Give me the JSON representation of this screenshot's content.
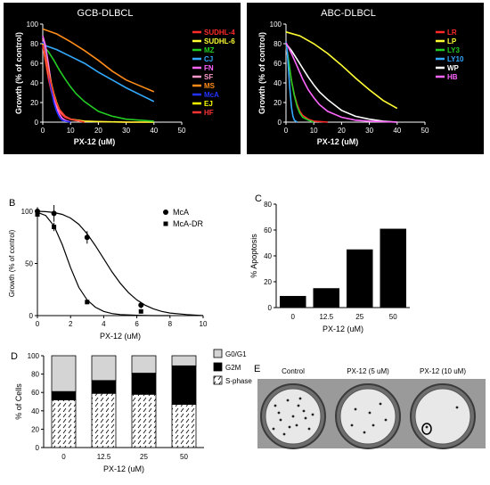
{
  "chart_data": [
    {
      "type": "line",
      "panel": "",
      "title": "GCB-DLBCL",
      "xlabel": "PX-12 (uM)",
      "ylabel": "Growth (% of control)",
      "xlim": [
        0,
        50
      ],
      "ylim": [
        0,
        100
      ],
      "xticks": [
        0,
        10,
        20,
        30,
        40,
        50
      ],
      "yticks": [
        0,
        20,
        40,
        60,
        80,
        100
      ],
      "background": "#000000",
      "legend_position": "right",
      "series": [
        {
          "name": "SUDHL-4",
          "color": "#ff2a2a",
          "x": [
            0,
            1,
            2,
            3,
            4,
            5,
            6,
            8,
            10,
            15,
            20,
            30,
            40
          ],
          "y": [
            78,
            62,
            45,
            32,
            22,
            15,
            10,
            5,
            3,
            1,
            0.5,
            0,
            0
          ]
        },
        {
          "name": "SUDHL-6",
          "color": "#ffff33",
          "x": [
            0,
            1,
            2,
            3,
            4,
            5,
            6,
            8,
            10,
            15,
            20,
            30,
            40
          ],
          "y": [
            80,
            66,
            50,
            37,
            26,
            18,
            12,
            6,
            3,
            1,
            0.5,
            0,
            0
          ]
        },
        {
          "name": "MZ",
          "color": "#22cc22",
          "x": [
            0,
            2,
            4,
            6,
            8,
            10,
            12,
            15,
            20,
            25,
            30,
            40
          ],
          "y": [
            78,
            72,
            63,
            53,
            44,
            36,
            29,
            21,
            11,
            6,
            3,
            1
          ]
        },
        {
          "name": "CJ",
          "color": "#33aaff",
          "x": [
            0,
            5,
            10,
            15,
            20,
            25,
            30,
            35,
            40
          ],
          "y": [
            79,
            74,
            67,
            60,
            51,
            43,
            35,
            28,
            21
          ]
        },
        {
          "name": "FN",
          "color": "#ff66ff",
          "x": [
            0,
            1,
            2,
            3,
            4,
            5,
            6,
            7,
            8,
            10
          ],
          "y": [
            88,
            78,
            60,
            40,
            25,
            14,
            8,
            4,
            2,
            0
          ]
        },
        {
          "name": "SF",
          "color": "#ff99cc",
          "x": [
            0,
            1,
            2,
            3,
            4,
            5,
            6,
            8,
            10,
            15
          ],
          "y": [
            85,
            72,
            56,
            40,
            28,
            19,
            12,
            6,
            3,
            0
          ]
        },
        {
          "name": "MS",
          "color": "#ff8c1a",
          "x": [
            0,
            5,
            10,
            15,
            20,
            25,
            30,
            35,
            40
          ],
          "y": [
            95,
            90,
            82,
            73,
            63,
            52,
            43,
            37,
            31
          ]
        },
        {
          "name": "McA",
          "color": "#2233ff",
          "x": [
            0,
            1,
            2,
            3,
            4,
            5,
            6,
            7,
            8,
            10
          ],
          "y": [
            82,
            70,
            52,
            34,
            20,
            11,
            5,
            2,
            1,
            0
          ]
        },
        {
          "name": "EJ",
          "color": "#ffff00",
          "x": [
            0,
            1,
            2,
            3,
            4,
            5,
            6,
            8,
            10,
            15
          ],
          "y": [
            80,
            68,
            53,
            40,
            29,
            20,
            13,
            6,
            3,
            0
          ]
        },
        {
          "name": "HF",
          "color": "#ff3333",
          "x": [
            0,
            1,
            2,
            3,
            4,
            5,
            6,
            8,
            10,
            15
          ],
          "y": [
            79,
            67,
            52,
            39,
            28,
            19,
            13,
            6,
            3,
            0
          ]
        }
      ]
    },
    {
      "type": "line",
      "panel": "",
      "title": "ABC-DLBCL",
      "xlabel": "PX-12 (uM)",
      "ylabel": "Growth (% of control)",
      "xlim": [
        0,
        50
      ],
      "ylim": [
        0,
        100
      ],
      "xticks": [
        0,
        10,
        20,
        30,
        40,
        50
      ],
      "yticks": [
        0,
        20,
        40,
        60,
        80,
        100
      ],
      "background": "#000000",
      "legend_position": "right",
      "series": [
        {
          "name": "LR",
          "color": "#ff2a2a",
          "x": [
            0,
            1,
            2,
            3,
            4,
            5,
            6,
            8,
            10,
            15
          ],
          "y": [
            78,
            60,
            42,
            28,
            18,
            11,
            7,
            3,
            1,
            0
          ]
        },
        {
          "name": "LP",
          "color": "#ffff33",
          "x": [
            0,
            5,
            10,
            15,
            20,
            25,
            30,
            35,
            40
          ],
          "y": [
            92,
            88,
            80,
            70,
            58,
            45,
            33,
            22,
            14
          ]
        },
        {
          "name": "LY3",
          "color": "#22cc22",
          "x": [
            0,
            1,
            2,
            3,
            4,
            5,
            6,
            8,
            10
          ],
          "y": [
            80,
            62,
            42,
            27,
            16,
            9,
            5,
            2,
            0
          ]
        },
        {
          "name": "LY10",
          "color": "#33aaff",
          "x": [
            0,
            0.5,
            1,
            1.5,
            2,
            2.5,
            3,
            4
          ],
          "y": [
            82,
            70,
            50,
            30,
            15,
            6,
            2,
            0
          ]
        },
        {
          "name": "WP",
          "color": "#ffffff",
          "x": [
            0,
            2,
            4,
            6,
            8,
            10,
            12,
            15,
            20,
            25,
            30,
            35,
            40
          ],
          "y": [
            80,
            73,
            64,
            55,
            46,
            38,
            31,
            23,
            12,
            6,
            3,
            1,
            0
          ]
        },
        {
          "name": "HB",
          "color": "#ff66ff",
          "x": [
            0,
            2,
            4,
            6,
            8,
            10,
            12,
            15,
            20,
            25,
            30,
            40
          ],
          "y": [
            81,
            70,
            57,
            44,
            33,
            25,
            18,
            11,
            5,
            2,
            1,
            0
          ]
        }
      ]
    },
    {
      "type": "scatter",
      "panel": "B",
      "xlabel": "PX-12 (uM)",
      "ylabel": "Growth (% of control)",
      "xlim": [
        0,
        10
      ],
      "ylim": [
        0,
        100
      ],
      "xticks": [
        0,
        2,
        4,
        6,
        8,
        10
      ],
      "yticks": [
        0,
        50,
        100
      ],
      "legend_position": "top-right",
      "series": [
        {
          "name": "McA",
          "marker": "circle",
          "x": [
            0,
            1,
            3,
            6.25
          ],
          "y": [
            100,
            98,
            75,
            10
          ],
          "err": [
            4,
            8,
            6,
            3
          ],
          "fit_x": [
            0,
            0.5,
            1,
            1.5,
            2,
            2.5,
            3,
            3.5,
            4,
            4.5,
            5,
            5.5,
            6,
            6.5,
            7,
            7.5,
            8,
            9,
            10
          ],
          "fit_y": [
            100,
            99.7,
            98.8,
            97,
            93.5,
            87.5,
            78.5,
            67,
            54.5,
            42,
            31,
            22,
            15,
            10,
            6.5,
            4,
            2.5,
            1,
            0
          ]
        },
        {
          "name": "McA-DR",
          "marker": "square",
          "x": [
            0,
            1,
            3,
            6.25
          ],
          "y": [
            97,
            85,
            13,
            4
          ],
          "err": [
            3,
            4,
            2,
            1
          ],
          "fit_x": [
            0,
            0.5,
            1,
            1.5,
            2,
            2.5,
            3,
            3.5,
            4,
            4.5,
            5,
            6,
            7,
            8
          ],
          "fit_y": [
            99,
            96,
            86,
            68,
            46,
            27,
            15,
            8,
            4,
            2,
            1,
            0.3,
            0,
            0
          ]
        }
      ]
    },
    {
      "type": "bar",
      "panel": "C",
      "xlabel": "PX-12 (uM)",
      "ylabel": "% Apoptosis",
      "categories": [
        "0",
        "12.5",
        "25",
        "50"
      ],
      "values": [
        9,
        15,
        45,
        61
      ],
      "ylim": [
        0,
        80
      ],
      "yticks": [
        0,
        20,
        40,
        60,
        80
      ]
    },
    {
      "type": "bar",
      "stacked": true,
      "panel": "D",
      "xlabel": "PX-12 (uM)",
      "ylabel": "% of Cells",
      "categories": [
        "0",
        "12.5",
        "25",
        "50"
      ],
      "ylim": [
        0,
        100
      ],
      "yticks": [
        0,
        20,
        40,
        60,
        80,
        100
      ],
      "legend_position": "right",
      "series": [
        {
          "name": "S-phase",
          "values": [
            52,
            59,
            58,
            47
          ]
        },
        {
          "name": "G2M",
          "values": [
            9,
            14,
            23,
            42
          ]
        },
        {
          "name": "G0/G1",
          "values": [
            39,
            27,
            19,
            11
          ]
        }
      ]
    }
  ],
  "panel_e": {
    "label": "E",
    "wells": [
      "Control",
      "PX-12 (5 uM)",
      "PX-12 (10 uM)"
    ]
  }
}
